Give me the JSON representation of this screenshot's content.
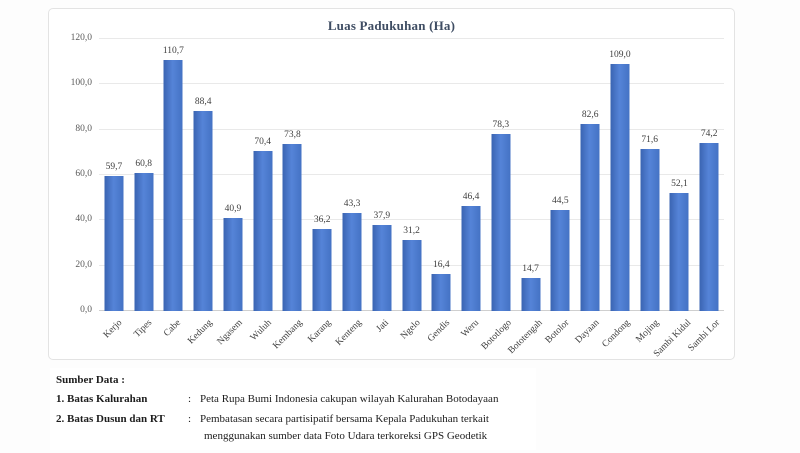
{
  "chart_data": {
    "type": "bar",
    "title": "Luas Padukuhan (Ha)",
    "categories": [
      "Kerjo",
      "Tipes",
      "Cabe",
      "Kedung",
      "Ngasem",
      "Wuluh",
      "Kembang",
      "Karang",
      "Kenteng",
      "Jati",
      "Ngelo",
      "Gendis",
      "Weru",
      "Bototlogo",
      "Bototengah",
      "Botolor",
      "Dayaan",
      "Condong",
      "Mojing",
      "Sambi Kidul",
      "Sambi Lor"
    ],
    "values": [
      59.7,
      60.8,
      110.7,
      88.4,
      40.9,
      70.4,
      73.8,
      36.2,
      43.3,
      37.9,
      31.2,
      16.4,
      46.4,
      78.3,
      14.7,
      44.5,
      82.6,
      109.0,
      71.6,
      52.1,
      74.2
    ],
    "value_labels": [
      "59,7",
      "60,8",
      "110,7",
      "88,4",
      "40,9",
      "70,4",
      "73,8",
      "36,2",
      "43,3",
      "37,9",
      "31,2",
      "16,4",
      "46,4",
      "78,3",
      "14,7",
      "44,5",
      "82,6",
      "109,0",
      "71,6",
      "52,1",
      "74,2"
    ],
    "xlabel": "",
    "ylabel": "",
    "ylim": [
      0,
      120
    ],
    "grid": true,
    "legend": "none",
    "yticks": [
      {
        "value": 0,
        "label": "0,0"
      },
      {
        "value": 20,
        "label": "20,0"
      },
      {
        "value": 40,
        "label": "40,0"
      },
      {
        "value": 60,
        "label": "60,0"
      },
      {
        "value": 80,
        "label": "80,0"
      },
      {
        "value": 100,
        "label": "100,0"
      },
      {
        "value": 120,
        "label": "120,0"
      }
    ]
  },
  "colors": {
    "bar": "#4472C4",
    "title": "#3F4D63",
    "grid": "#E9E9E9",
    "value_label": "#404040",
    "tick_label": "#595959"
  },
  "footer": {
    "heading": "Sumber Data :",
    "items": [
      {
        "label": "1. Batas Kalurahan",
        "sep": ":",
        "text": "Peta Rupa Bumi Indonesia cakupan wilayah  Kalurahan Botodayaan",
        "text2": ""
      },
      {
        "label": "2. Batas Dusun dan RT",
        "sep": ":",
        "text": "Pembatasan secara partisipatif bersama Kepala Padukuhan terkait",
        "text2": "menggunakan sumber data Foto Udara terkoreksi GPS Geodetik"
      }
    ]
  }
}
